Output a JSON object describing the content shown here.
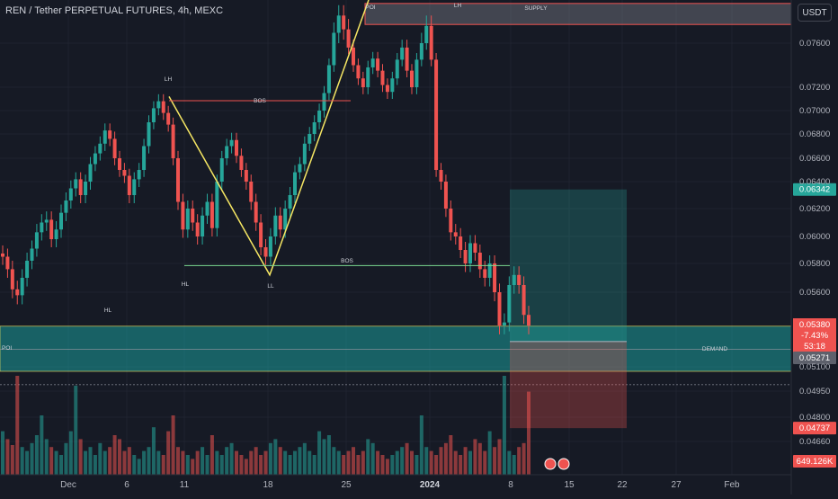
{
  "header": {
    "title": "REN / Tether PERPETUAL FUTURES, 4h, MEXC"
  },
  "currency_button": "USDT",
  "colors": {
    "background": "#161a25",
    "up": "#26a69a",
    "down": "#ef5350",
    "supply_zone": "#787b86",
    "demand_zone": "#1b9c9a",
    "fib_line": "#f5e663"
  },
  "chart_data": {
    "type": "candlestick",
    "timeframe": "4h",
    "ylim": [
      0.046,
      0.0785
    ],
    "y_ticks": [
      "0.07600",
      "0.07200",
      "0.07000",
      "0.06800",
      "0.06600",
      "0.06400",
      "0.06200",
      "0.06000",
      "0.05800",
      "0.05600",
      "0.05100",
      "0.04950",
      "0.04800",
      "0.04660"
    ],
    "x_ticks": [
      "Dec",
      "6",
      "11",
      "18",
      "25",
      "2024",
      "8",
      "15",
      "22",
      "27",
      "Feb"
    ],
    "price_path": [
      0.0585,
      0.0576,
      0.0562,
      0.0558,
      0.057,
      0.0582,
      0.0591,
      0.0603,
      0.061,
      0.0612,
      0.0598,
      0.0605,
      0.0617,
      0.0626,
      0.0635,
      0.0642,
      0.063,
      0.064,
      0.0655,
      0.0664,
      0.0672,
      0.0683,
      0.0676,
      0.066,
      0.065,
      0.0645,
      0.063,
      0.0642,
      0.065,
      0.067,
      0.069,
      0.0702,
      0.0708,
      0.0698,
      0.0688,
      0.066,
      0.0625,
      0.0605,
      0.062,
      0.061,
      0.06,
      0.0615,
      0.0625,
      0.0606,
      0.064,
      0.066,
      0.067,
      0.0675,
      0.0662,
      0.065,
      0.064,
      0.0625,
      0.061,
      0.0592,
      0.0585,
      0.06,
      0.0615,
      0.0605,
      0.062,
      0.063,
      0.0648,
      0.0655,
      0.0672,
      0.068,
      0.069,
      0.07,
      0.0715,
      0.074,
      0.0766,
      0.0776,
      0.0768,
      0.0756,
      0.074,
      0.0728,
      0.072,
      0.0738,
      0.0746,
      0.0735,
      0.0722,
      0.0716,
      0.0728,
      0.0745,
      0.0756,
      0.0735,
      0.072,
      0.0745,
      0.076,
      0.077,
      0.0745,
      0.065,
      0.064,
      0.062,
      0.0603,
      0.06,
      0.059,
      0.058,
      0.0595,
      0.0588,
      0.0576,
      0.057,
      0.058,
      0.056,
      0.0538,
      0.054,
      0.0565,
      0.0572,
      0.0565,
      0.0545,
      0.0538
    ],
    "volume_path": [
      22,
      18,
      15,
      50,
      14,
      12,
      16,
      20,
      30,
      18,
      14,
      12,
      10,
      16,
      22,
      45,
      18,
      12,
      14,
      10,
      16,
      12,
      14,
      20,
      18,
      12,
      14,
      10,
      8,
      12,
      14,
      24,
      12,
      10,
      22,
      30,
      14,
      12,
      10,
      8,
      12,
      14,
      10,
      20,
      12,
      10,
      14,
      16,
      12,
      10,
      8,
      12,
      14,
      10,
      12,
      16,
      18,
      14,
      12,
      10,
      12,
      14,
      16,
      12,
      10,
      22,
      18,
      20,
      14,
      12,
      10,
      12,
      14,
      10,
      12,
      18,
      16,
      12,
      10,
      8,
      10,
      12,
      14,
      16,
      12,
      10,
      30,
      14,
      12,
      10,
      14,
      16,
      20,
      12,
      10,
      14,
      12,
      18,
      16,
      12,
      22,
      14,
      18,
      50,
      12,
      10,
      14,
      16,
      42
    ],
    "annotations": {
      "supply": "SUPPLY",
      "demand": "DEMAND",
      "poi_top": "POI",
      "poi_left": "POI",
      "bos_upper": "BOS",
      "bos_lower": "BOS",
      "lh_1": "LH",
      "lh_2": "LH",
      "hl_1": "HL",
      "hl_2": "HL",
      "ll": "LL"
    },
    "levels": {
      "supply_top": 0.0783,
      "supply_bottom": 0.0775,
      "demand_top": 0.05375,
      "demand_bottom": 0.051,
      "bos_upper": 0.07085,
      "bos_lower": 0.05785,
      "dotted_level": 0.0499,
      "position_tp": 0.06342,
      "position_entry": 0.05271,
      "position_sl": 0.04737
    },
    "price_labels": {
      "tp": "0.06342",
      "current": "0.05380",
      "change": "-7.43%",
      "countdown": "53:18",
      "entry": "0.05271",
      "sl": "0.04737",
      "volume": "649.126K"
    }
  }
}
